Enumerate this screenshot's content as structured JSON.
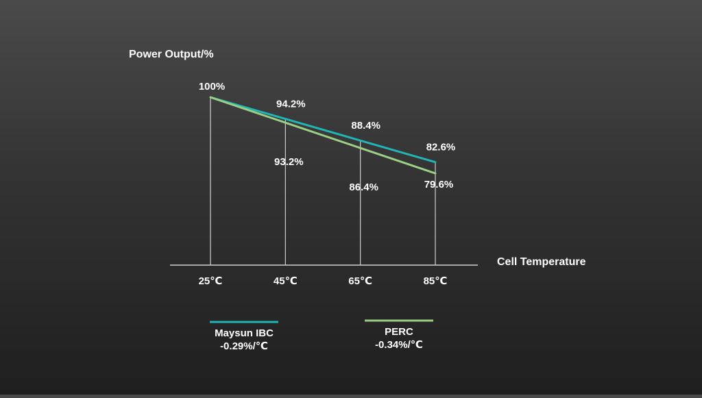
{
  "chart_data": {
    "type": "line",
    "ylabel": "Power Output/%",
    "xlabel": "Cell Temperature",
    "categories": [
      "25℃",
      "45℃",
      "65℃",
      "85℃"
    ],
    "x": [
      25,
      45,
      65,
      85
    ],
    "ylim": [
      55,
      100
    ],
    "grid": false,
    "legend_position": "bottom",
    "series": [
      {
        "name": "Maysun IBC",
        "subtitle": "-0.29%/℃",
        "values": [
          100,
          94.2,
          88.4,
          82.6
        ],
        "labels": [
          "100%",
          "94.2%",
          "88.4%",
          "82.6%"
        ],
        "color": "#22b5b5"
      },
      {
        "name": "PERC",
        "subtitle": "-0.34%/℃",
        "values": [
          100,
          93.2,
          86.4,
          79.6
        ],
        "labels": [
          "",
          "93.2%",
          "86.4%",
          "79.6%"
        ],
        "color": "#9ccf86"
      }
    ],
    "axis_color": "#d0d0d0"
  }
}
